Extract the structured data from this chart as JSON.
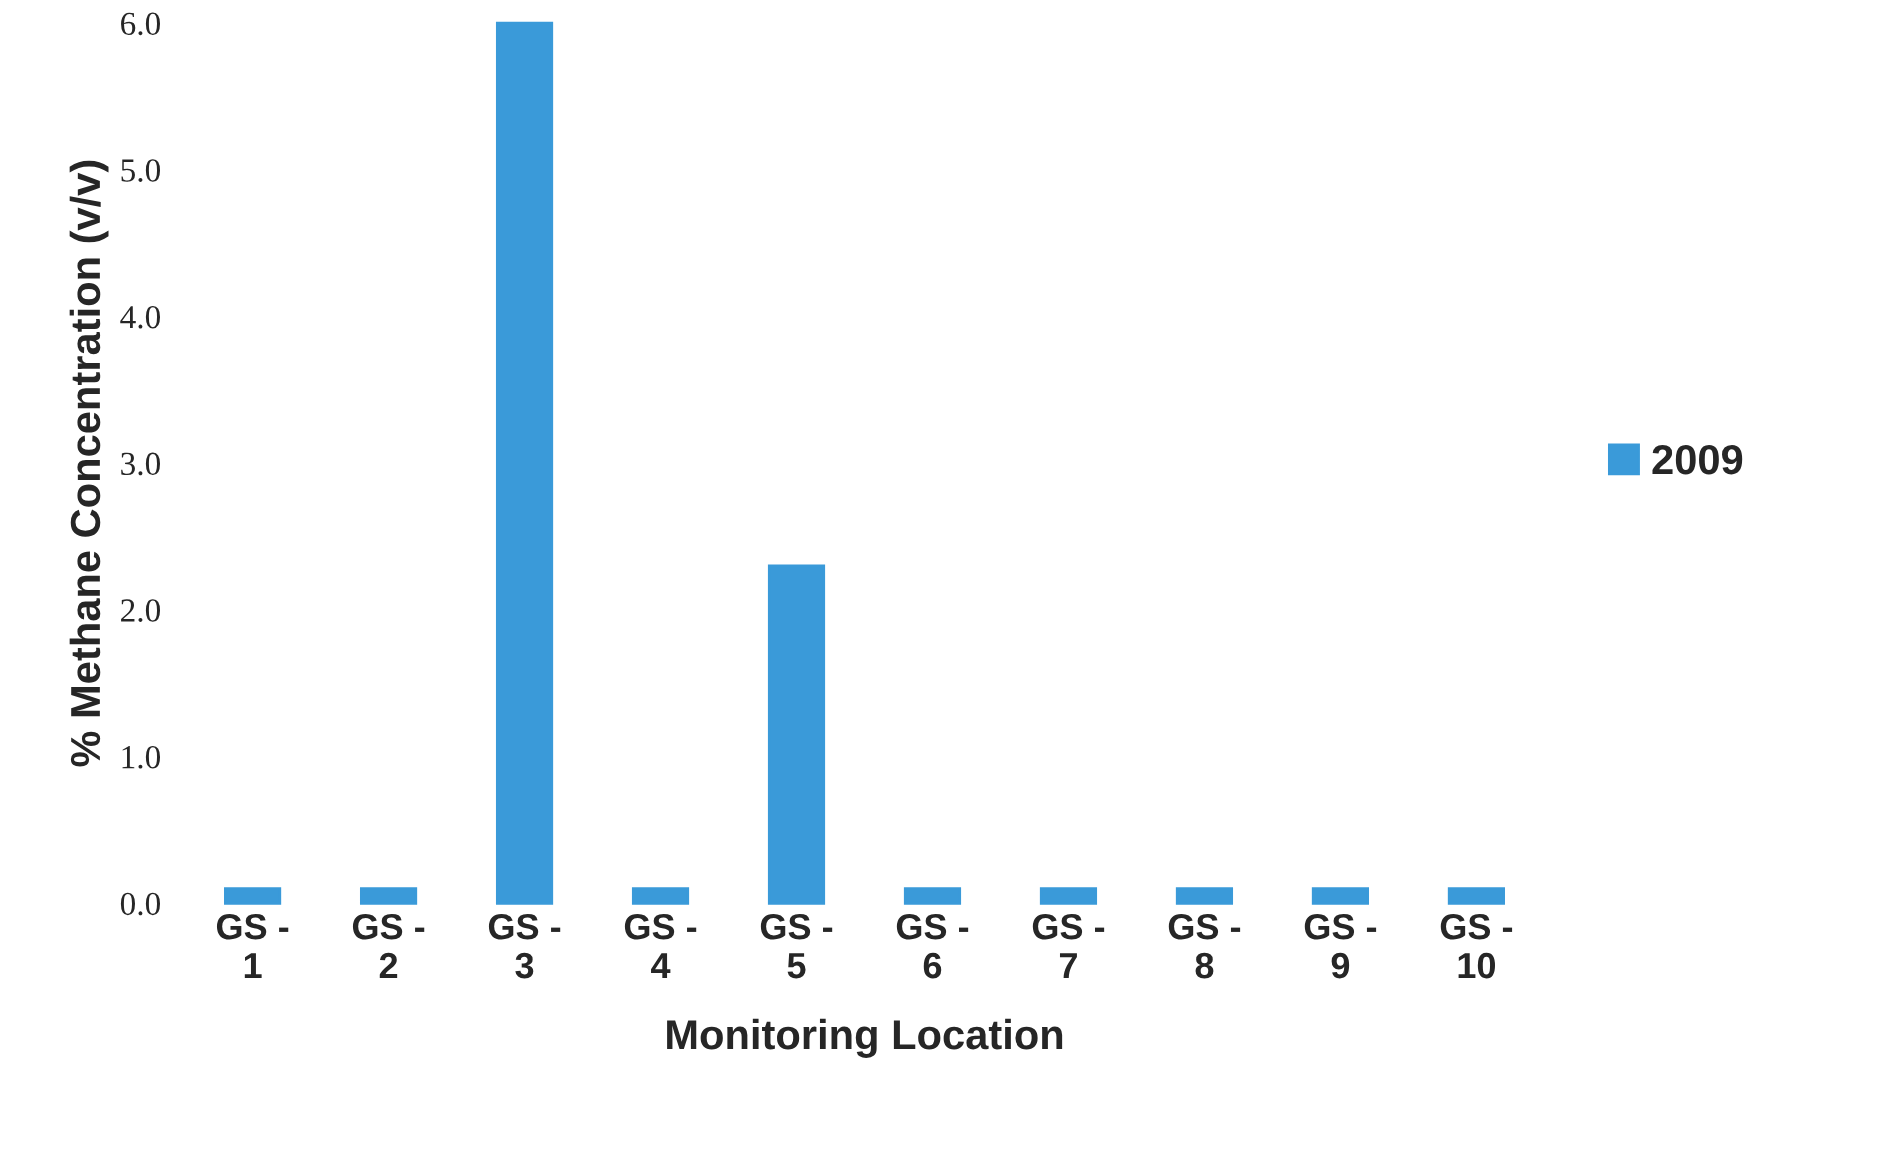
{
  "chart_data": {
    "type": "bar",
    "xlabel": "Monitoring Location",
    "ylabel": "% Methane Concentration (v/v)",
    "categories": [
      "GS -\n1",
      "GS -\n2",
      "GS -\n3",
      "GS -\n4",
      "GS -\n5",
      "GS -\n6",
      "GS -\n7",
      "GS -\n8",
      "GS -\n9",
      "GS -\n10"
    ],
    "series": [
      {
        "name": "2009",
        "color": "#3a9ad9",
        "values": [
          0.1,
          0.1,
          6.0,
          0.1,
          2.3,
          0.1,
          0.1,
          0.1,
          0.1,
          0.1
        ]
      }
    ],
    "ylim": [
      0,
      6
    ],
    "yticks": [
      {
        "value": 0,
        "label": "0.0"
      },
      {
        "value": 1,
        "label": "1.0"
      },
      {
        "value": 2,
        "label": "2.0"
      },
      {
        "value": 3,
        "label": "3.0"
      },
      {
        "value": 4,
        "label": "4.0"
      },
      {
        "value": 5,
        "label": "5.0"
      },
      {
        "value": 6,
        "label": "6.0"
      }
    ],
    "legend": "right",
    "grid": false
  }
}
